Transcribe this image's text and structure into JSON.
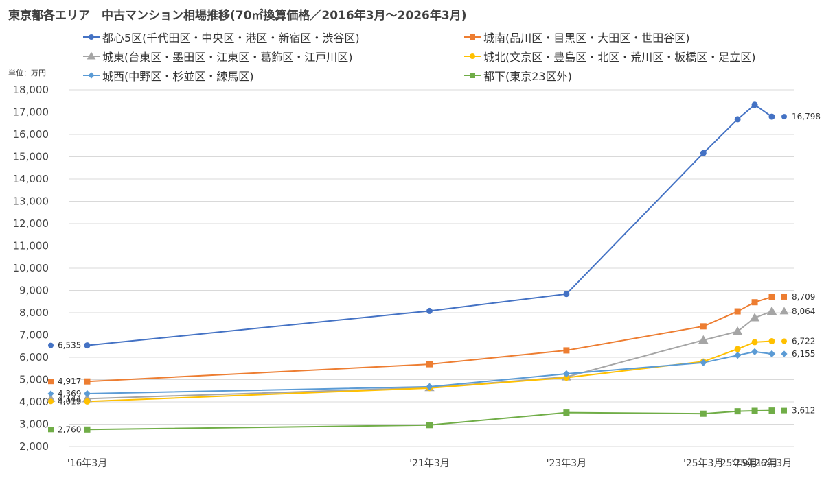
{
  "title": "東京都各エリア　中古マンション相場推移(70㎡換算価格／2016年3月～2026年3月)",
  "unit_label": "単位：万円",
  "chart_data": {
    "type": "line",
    "title": "東京都各エリア　中古マンション相場推移(70㎡換算価格／2016年3月～2026年3月)",
    "ylabel": "単位：万円",
    "ylim": [
      2000,
      18000
    ],
    "y_ticks": [
      "2,000",
      "3,000",
      "4,000",
      "5,000",
      "6,000",
      "7,000",
      "8,000",
      "9,000",
      "10,000",
      "11,000",
      "12,000",
      "13,000",
      "14,000",
      "15,000",
      "16,000",
      "17,000",
      "18,000"
    ],
    "categories": [
      "'16年3月",
      "'21年3月",
      "'23年3月",
      "'25年3月",
      "'25年9月",
      "'25年12月",
      "'26年3月"
    ],
    "x_dates": [
      "2016-03",
      "2021-03",
      "2023-03",
      "2025-03",
      "2025-09",
      "2025-12",
      "2026-03"
    ],
    "grid": true,
    "legend_position": "top",
    "series": [
      {
        "name": "都心5区(千代田区・中央区・港区・新宿区・渋谷区)",
        "color": "#4472C4",
        "marker": "circle",
        "values": [
          6535,
          8080,
          8840,
          15160,
          16680,
          17330,
          16798
        ],
        "first_label": "6,535",
        "last_label": "16,798"
      },
      {
        "name": "城南(品川区・目黒区・大田区・世田谷区)",
        "color": "#ED7D31",
        "marker": "square",
        "values": [
          4917,
          5690,
          6310,
          7390,
          8060,
          8470,
          8709
        ],
        "first_label": "4,917",
        "last_label": "8,709"
      },
      {
        "name": "城東(台東区・墨田区・江東区・葛飾区・江戸川区)",
        "color": "#A5A5A5",
        "marker": "triangle",
        "values": [
          4144,
          4640,
          5120,
          6770,
          7160,
          7770,
          8064
        ],
        "first_label": "4,144",
        "last_label": "8,064"
      },
      {
        "name": "城北(文京区・豊島区・北区・荒川区・板橋区・足立区)",
        "color": "#FFC000",
        "marker": "circle",
        "values": [
          4019,
          4620,
          5090,
          5810,
          6370,
          6680,
          6722
        ],
        "first_label": "4,019",
        "last_label": "6,722"
      },
      {
        "name": "城西(中野区・杉並区・練馬区)",
        "color": "#5B9BD5",
        "marker": "diamond",
        "values": [
          4369,
          4680,
          5260,
          5760,
          6090,
          6250,
          6155
        ],
        "first_label": "4,369",
        "last_label": "6,155"
      },
      {
        "name": "都下(東京23区外)",
        "color": "#70AD47",
        "marker": "square",
        "values": [
          2760,
          2960,
          3520,
          3470,
          3580,
          3600,
          3612
        ],
        "first_label": "2,760",
        "last_label": "3,612"
      }
    ]
  }
}
